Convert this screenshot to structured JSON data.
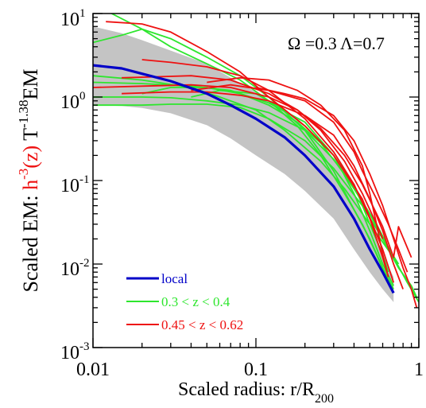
{
  "chart_data": {
    "type": "line",
    "title": "",
    "xlabel": {
      "prefix": "Scaled radius: r/R",
      "sub": "200"
    },
    "ylabel": {
      "prefix": "Scaled EM: ",
      "red_part": "h",
      "red_sup": "-3",
      "red_rest": "(z)",
      "mid": " T",
      "mid_sup": "-1.38",
      "suffix": "EM"
    },
    "annotation": "Ω =0.3 Λ=0.7",
    "xscale": "log",
    "yscale": "log",
    "xlim": [
      0.01,
      1
    ],
    "ylim": [
      0.001,
      10
    ],
    "x_ticks": [
      {
        "value": 0.01,
        "label": "0.01"
      },
      {
        "value": 0.1,
        "label": "0.1"
      },
      {
        "value": 1,
        "label": "1"
      }
    ],
    "y_ticks": [
      {
        "value": 10,
        "base": "10",
        "exp": "1"
      },
      {
        "value": 1,
        "base": "10",
        "exp": "0"
      },
      {
        "value": 0.1,
        "base": "10",
        "exp": "-1"
      },
      {
        "value": 0.01,
        "base": "10",
        "exp": "-2"
      },
      {
        "value": 0.001,
        "base": "10",
        "exp": "-3"
      }
    ],
    "colors": {
      "band": "#c4c4c4",
      "local": "#0000c8",
      "green": "#2ee62e",
      "red": "#ee1111",
      "ylabel_red": "#ee1111"
    },
    "legend": [
      {
        "label": "local",
        "color": "#0000c8"
      },
      {
        "label": "0.3 < z < 0.4",
        "color": "#2ee62e"
      },
      {
        "label": "0.45 < z < 0.62",
        "color": "#ee1111"
      }
    ],
    "band": {
      "x": [
        0.01,
        0.015,
        0.02,
        0.03,
        0.05,
        0.07,
        0.1,
        0.15,
        0.2,
        0.3,
        0.4,
        0.5,
        0.6,
        0.7
      ],
      "upper": [
        7.0,
        5.8,
        4.8,
        3.6,
        2.5,
        1.7,
        1.15,
        0.7,
        0.42,
        0.18,
        0.07,
        0.028,
        0.013,
        0.007
      ],
      "lower": [
        0.8,
        0.78,
        0.74,
        0.64,
        0.46,
        0.32,
        0.2,
        0.12,
        0.075,
        0.035,
        0.015,
        0.008,
        0.005,
        0.0035
      ]
    },
    "series": [
      {
        "group": "local",
        "x": [
          0.01,
          0.015,
          0.02,
          0.03,
          0.05,
          0.07,
          0.1,
          0.15,
          0.2,
          0.3,
          0.4,
          0.5,
          0.6,
          0.7
        ],
        "y": [
          2.4,
          2.2,
          1.9,
          1.55,
          1.1,
          0.8,
          0.55,
          0.33,
          0.2,
          0.085,
          0.035,
          0.015,
          0.008,
          0.0045
        ]
      },
      {
        "group": "green",
        "x": [
          0.01,
          0.015,
          0.02,
          0.03,
          0.05,
          0.08,
          0.12,
          0.2,
          0.3,
          0.4,
          0.5,
          0.6,
          0.7
        ],
        "y": [
          4.5,
          5.5,
          6.5,
          5.0,
          3.0,
          1.8,
          1.0,
          0.4,
          0.13,
          0.045,
          0.02,
          0.009,
          0.005
        ]
      },
      {
        "group": "green",
        "x": [
          0.013,
          0.02,
          0.03,
          0.05,
          0.08,
          0.12,
          0.18,
          0.25,
          0.35,
          0.45,
          0.55,
          0.65
        ],
        "y": [
          10.0,
          6.5,
          4.0,
          2.5,
          1.6,
          0.9,
          0.45,
          0.2,
          0.07,
          0.03,
          0.013,
          0.006
        ]
      },
      {
        "group": "green",
        "x": [
          0.01,
          0.02,
          0.04,
          0.06,
          0.1,
          0.15,
          0.25,
          0.35,
          0.5,
          0.7,
          0.85,
          1.0
        ],
        "y": [
          1.8,
          1.6,
          1.3,
          1.0,
          0.7,
          0.4,
          0.17,
          0.08,
          0.03,
          0.012,
          0.006,
          0.0035
        ]
      },
      {
        "group": "green",
        "x": [
          0.01,
          0.02,
          0.03,
          0.05,
          0.08,
          0.12,
          0.2,
          0.3,
          0.45,
          0.6,
          0.75,
          0.9,
          0.97
        ],
        "y": [
          0.8,
          0.8,
          0.82,
          0.82,
          0.75,
          0.55,
          0.3,
          0.14,
          0.05,
          0.02,
          0.009,
          0.0055,
          0.004
        ]
      },
      {
        "group": "green",
        "x": [
          0.01,
          0.02,
          0.03,
          0.05,
          0.08,
          0.12,
          0.2,
          0.3,
          0.4,
          0.55,
          0.7
        ],
        "y": [
          1.0,
          1.0,
          0.98,
          0.9,
          0.8,
          0.65,
          0.4,
          0.18,
          0.08,
          0.03,
          0.012
        ]
      },
      {
        "group": "green",
        "x": [
          0.01,
          0.02,
          0.04,
          0.07,
          0.12,
          0.2,
          0.3,
          0.4,
          0.5,
          0.6,
          0.7
        ],
        "y": [
          1.5,
          1.45,
          1.35,
          1.2,
          0.85,
          0.5,
          0.2,
          0.07,
          0.025,
          0.01,
          0.0055
        ]
      },
      {
        "group": "green",
        "x": [
          0.02,
          0.03,
          0.05,
          0.08,
          0.12,
          0.18,
          0.25,
          0.35,
          0.5,
          0.6,
          0.75
        ],
        "y": [
          1.1,
          1.3,
          1.3,
          1.1,
          0.8,
          0.5,
          0.28,
          0.12,
          0.04,
          0.02,
          0.01
        ]
      },
      {
        "group": "green",
        "x": [
          0.04,
          0.06,
          0.1,
          0.15,
          0.2,
          0.3,
          0.4,
          0.5,
          0.6,
          0.65
        ],
        "y": [
          1.0,
          1.2,
          1.1,
          0.7,
          0.45,
          0.2,
          0.09,
          0.03,
          0.013,
          0.008
        ]
      },
      {
        "group": "red",
        "x": [
          0.012,
          0.02,
          0.03,
          0.05,
          0.08,
          0.12,
          0.2,
          0.3,
          0.45,
          0.6,
          0.7
        ],
        "y": [
          8.0,
          7.5,
          6.0,
          3.5,
          2.0,
          1.0,
          0.45,
          0.2,
          0.06,
          0.015,
          0.006
        ]
      },
      {
        "group": "red",
        "x": [
          0.02,
          0.03,
          0.05,
          0.08,
          0.12,
          0.2,
          0.3,
          0.4,
          0.5,
          0.6,
          0.65
        ],
        "y": [
          2.8,
          2.6,
          2.3,
          1.8,
          1.2,
          0.55,
          0.22,
          0.09,
          0.035,
          0.012,
          0.007
        ]
      },
      {
        "group": "red",
        "x": [
          0.01,
          0.02,
          0.04,
          0.07,
          0.12,
          0.18,
          0.25,
          0.35,
          0.45,
          0.55,
          0.6
        ],
        "y": [
          1.3,
          1.35,
          1.4,
          1.3,
          1.0,
          0.7,
          0.4,
          0.17,
          0.07,
          0.03,
          0.02
        ]
      },
      {
        "group": "red",
        "x": [
          0.015,
          0.03,
          0.05,
          0.08,
          0.12,
          0.2,
          0.3,
          0.4,
          0.5,
          0.6,
          0.7,
          0.8
        ],
        "y": [
          1.1,
          1.15,
          1.15,
          1.05,
          0.9,
          0.6,
          0.35,
          0.15,
          0.06,
          0.025,
          0.01,
          0.005
        ]
      },
      {
        "group": "red",
        "x": [
          0.015,
          0.025,
          0.04,
          0.07,
          0.12,
          0.18,
          0.25,
          0.35,
          0.45,
          0.55,
          0.6,
          0.7,
          0.75,
          0.9
        ],
        "y": [
          1.7,
          1.75,
          1.8,
          1.6,
          1.1,
          0.7,
          0.42,
          0.2,
          0.09,
          0.04,
          0.028,
          0.012,
          0.028,
          0.012
        ]
      },
      {
        "group": "red",
        "x": [
          0.05,
          0.08,
          0.12,
          0.18,
          0.25,
          0.35,
          0.45,
          0.5,
          0.55,
          0.6,
          0.65
        ],
        "y": [
          1.5,
          1.7,
          1.6,
          1.2,
          0.8,
          0.4,
          0.15,
          0.07,
          0.03,
          0.013,
          0.007
        ]
      },
      {
        "group": "red",
        "x": [
          0.1,
          0.15,
          0.2,
          0.3,
          0.4,
          0.5,
          0.6,
          0.7,
          0.8,
          0.9,
          0.97
        ],
        "y": [
          1.3,
          1.1,
          0.95,
          0.6,
          0.3,
          0.12,
          0.05,
          0.02,
          0.009,
          0.005,
          0.003
        ]
      },
      {
        "group": "red",
        "x": [
          0.04,
          0.07,
          0.12,
          0.2,
          0.3,
          0.4,
          0.45,
          0.55,
          0.65,
          0.75,
          0.85
        ],
        "y": [
          1.2,
          1.4,
          1.2,
          0.9,
          0.5,
          0.22,
          0.13,
          0.06,
          0.03,
          0.015,
          0.008
        ]
      }
    ]
  }
}
